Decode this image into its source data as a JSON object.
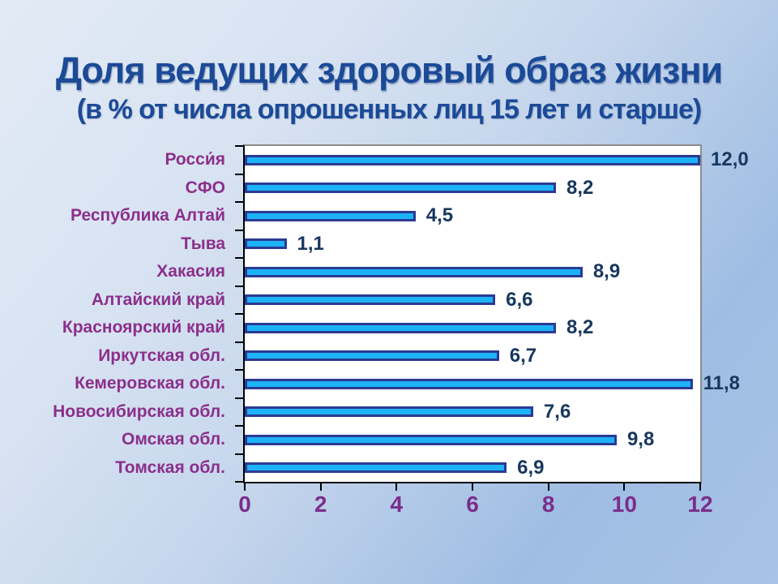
{
  "slide": {
    "title": "Доля ведущих здоровый образ жизни",
    "subtitle": "(в % от числа опрошенных лиц 15 лет и старше)"
  },
  "chart_data": {
    "type": "bar",
    "orientation": "horizontal",
    "title": "Доля ведущих здоровый образ жизни",
    "subtitle": "(в % от числа опрошенных лиц 15 лет и старше)",
    "categories": [
      "Росси́я",
      "СФО",
      "Республика Алтай",
      "Тыва",
      "Хакасия",
      "Алтайский край",
      "Красноярский край",
      "Иркутская обл.",
      "Кемеровская обл.",
      "Новосибирская обл.",
      "Омская обл.",
      "Томская обл."
    ],
    "values": [
      12.0,
      8.2,
      4.5,
      1.1,
      8.9,
      6.6,
      8.2,
      6.7,
      11.8,
      7.6,
      9.8,
      6.9
    ],
    "value_labels": [
      "12,0",
      "8,2",
      "4,5",
      "1,1",
      "8,9",
      "6,6",
      "8,2",
      "6,7",
      "11,8",
      "7,6",
      "9,8",
      "6,9"
    ],
    "xlim": [
      0,
      12
    ],
    "x_ticks": [
      0,
      2,
      4,
      6,
      8,
      10,
      12
    ],
    "grid": false,
    "legend": false,
    "colors": {
      "bar_fill": "#1db2f5",
      "bar_border": "#2a3a94",
      "value_label": "#17375e",
      "category_label": "#8b2f8b",
      "axis_tick_label": "#7b2d8b",
      "title": "#1b4a97",
      "plot_background": "#ffffff",
      "axis_line": "#000000",
      "plot_border": "#8c8c8c"
    }
  }
}
